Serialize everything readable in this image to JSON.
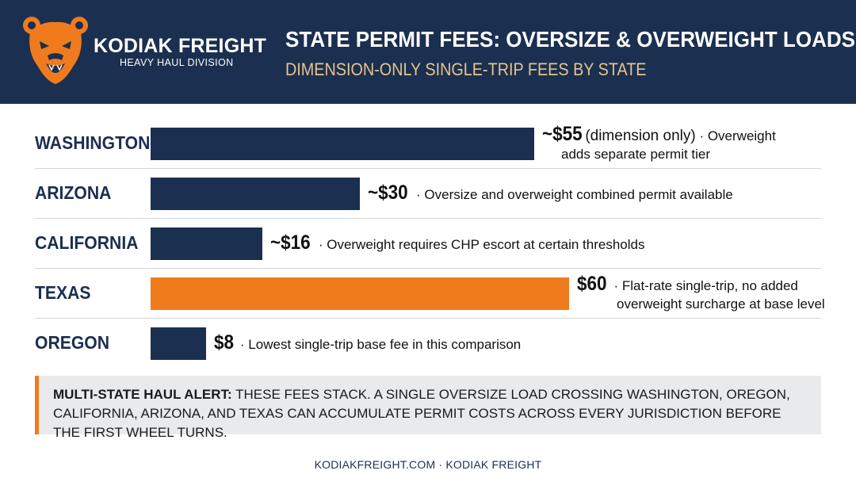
{
  "brand": {
    "name": "KODIAK FREIGHT",
    "division": "HEAVY HAUL DIVISION"
  },
  "header": {
    "title": "STATE PERMIT FEES: OVERSIZE & OVERWEIGHT LOADS",
    "subtitle": "DIMENSION-ONLY SINGLE-TRIP FEES BY STATE"
  },
  "colors": {
    "navy": "#1b2f50",
    "orange": "#ef7b1d",
    "gold": "#e6c48a"
  },
  "chart_data": {
    "type": "bar",
    "orientation": "horizontal",
    "categories": [
      "WASHINGTON",
      "ARIZONA",
      "CALIFORNIA",
      "TEXAS",
      "OREGON"
    ],
    "values": [
      55,
      30,
      16,
      60,
      8
    ],
    "highlight": "TEXAS",
    "data_labels": [
      "~$55",
      "~$30",
      "~$16",
      "$60",
      "$8"
    ],
    "annotations": [
      {
        "qualifier": "(dimension only)",
        "line1": " · Overweight",
        "line2": "adds separate permit tier"
      },
      {
        "qualifier": "",
        "line1": " · Oversize and overweight combined permit available",
        "line2": ""
      },
      {
        "qualifier": "",
        "line1": " · Overweight requires CHP escort at certain thresholds",
        "line2": ""
      },
      {
        "qualifier": "",
        "line1": " · Flat-rate single-trip, no added",
        "line2": "overweight surcharge at base level"
      },
      {
        "qualifier": "",
        "line1": " · Lowest single-trip base fee in this comparison",
        "line2": ""
      }
    ]
  },
  "alert": {
    "label": "MULTI-STATE HAUL ALERT:",
    "text": " THESE FEES STACK. A SINGLE OVERSIZE LOAD CROSSING WASHINGTON, OREGON, CALIFORNIA, ARIZONA, AND TEXAS CAN ACCUMULATE PERMIT COSTS ACROSS EVERY JURISDICTION BEFORE THE FIRST WHEEL TURNS."
  },
  "footer": {
    "text": "KODIAKFREIGHT.COM · KODIAK FREIGHT"
  }
}
